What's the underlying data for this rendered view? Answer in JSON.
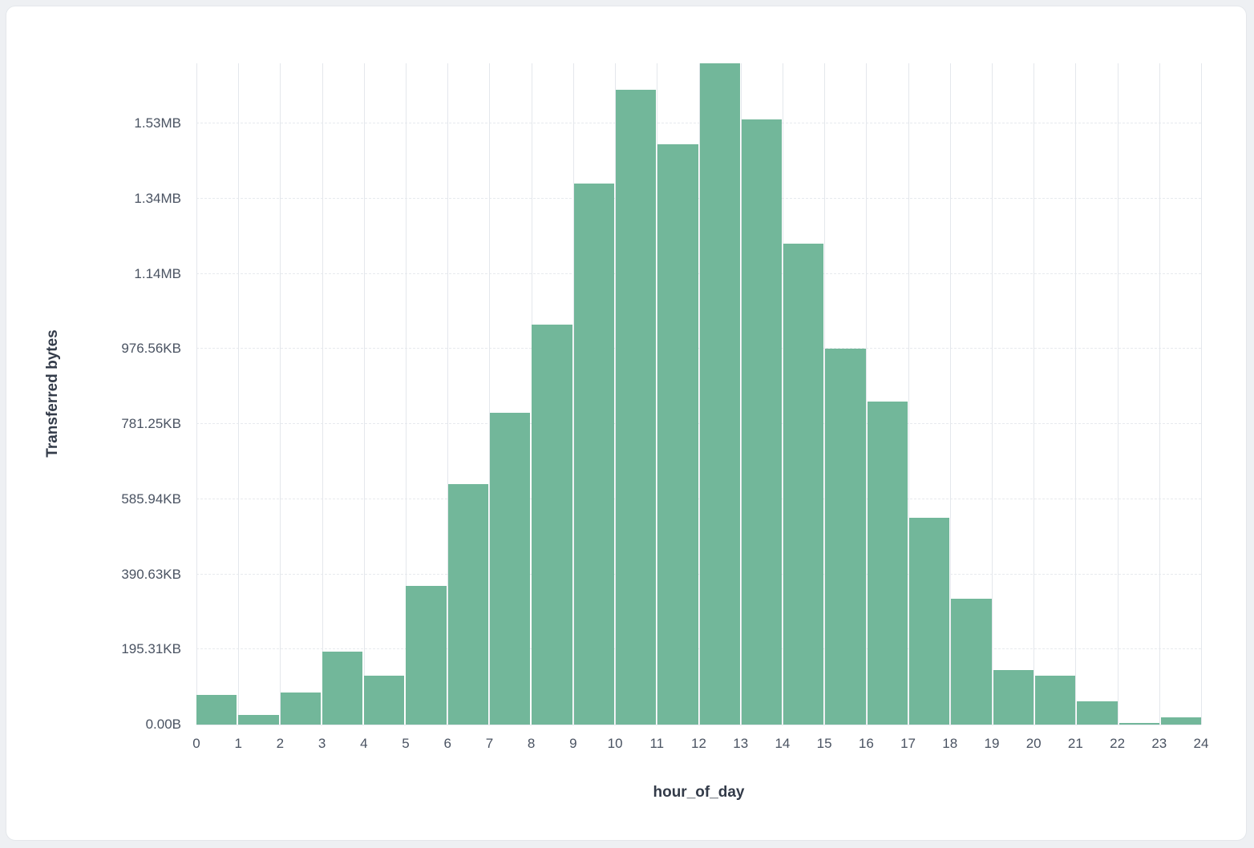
{
  "colors": {
    "bar": "#72b79a",
    "grid_vertical": "#e4e7ec",
    "grid_horizontal": "#e7eaee",
    "card_background": "#ffffff",
    "page_background": "#eef0f3",
    "tick_text": "#4a5362",
    "axis_title_text": "#333b49"
  },
  "chart_data": {
    "type": "bar",
    "title": "",
    "xlabel": "hour_of_day",
    "ylabel": "Transferred bytes",
    "x_ticks": [
      "0",
      "1",
      "2",
      "3",
      "4",
      "5",
      "6",
      "7",
      "8",
      "9",
      "10",
      "11",
      "12",
      "13",
      "14",
      "15",
      "16",
      "17",
      "18",
      "19",
      "20",
      "21",
      "22",
      "23",
      "24"
    ],
    "categories": [
      "0-1",
      "1-2",
      "2-3",
      "3-4",
      "4-5",
      "5-6",
      "6-7",
      "7-8",
      "8-9",
      "9-10",
      "10-11",
      "11-12",
      "12-13",
      "13-14",
      "14-15",
      "15-16",
      "16-17",
      "17-18",
      "18-19",
      "19-20",
      "20-21",
      "21-22",
      "22-23",
      "23-24"
    ],
    "values": [
      80000,
      25000,
      85000,
      195000,
      130000,
      370000,
      640000,
      830000,
      1065000,
      1440000,
      1690000,
      1545000,
      1760000,
      1610000,
      1280000,
      1000000,
      860000,
      550000,
      335000,
      145000,
      130000,
      62000,
      4000,
      20000
    ],
    "values_unit": "bytes",
    "y_ticks": [
      {
        "label": "0.00B",
        "value": 0
      },
      {
        "label": "195.31KB",
        "value": 200000
      },
      {
        "label": "390.63KB",
        "value": 400000
      },
      {
        "label": "585.94KB",
        "value": 600000
      },
      {
        "label": "781.25KB",
        "value": 800000
      },
      {
        "label": "976.56KB",
        "value": 1000000
      },
      {
        "label": "1.14MB",
        "value": 1200000
      },
      {
        "label": "1.34MB",
        "value": 1400000
      },
      {
        "label": "1.53MB",
        "value": 1600000
      }
    ],
    "xlim": [
      0,
      24
    ],
    "ylim": [
      0,
      1760000
    ],
    "grid": true,
    "legend": "none"
  }
}
